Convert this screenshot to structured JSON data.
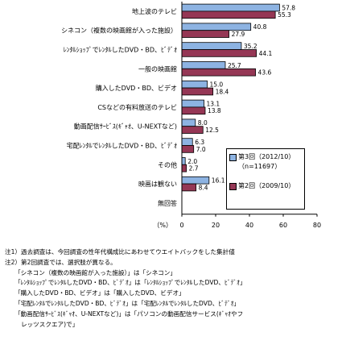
{
  "chart_data": {
    "type": "bar",
    "orientation": "horizontal",
    "categories": [
      "地上波のテレビ",
      "シネコン（複数の映画館が入った施設）",
      "ﾚﾝﾀﾙｼｮｯﾌﾟでﾚﾝﾀﾙしたDVD・BD、ﾋﾞﾃﾞｵ",
      "一般の映画館",
      "購入したDVD・BD、ビデオ",
      "CSなどの有料放送のテレビ",
      "動画配信ｻｰﾋﾞｽ(ｷﾞｬｵ、U-NEXTなど)",
      "宅配ﾚﾝﾀﾙでﾚﾝﾀﾙしたDVD・BD、ﾋﾞﾃﾞｵ",
      "その他",
      "映画は観ない",
      "無回答"
    ],
    "series": [
      {
        "name": "第3回（2012/10）",
        "values": [
          57.8,
          40.8,
          35.2,
          25.7,
          15.0,
          13.1,
          8.0,
          6.3,
          2.0,
          16.1,
          null
        ]
      },
      {
        "name": "第2回（2009/10）",
        "values": [
          55.3,
          27.9,
          44.1,
          43.6,
          18.4,
          13.8,
          12.5,
          7.0,
          2.7,
          8.4,
          null
        ]
      }
    ],
    "value_labels": [
      [
        "57.8",
        "40.8",
        "35.2",
        "25.7",
        "15.0",
        "13.1",
        "8.0",
        "6.3",
        "2.0",
        "16.1",
        ""
      ],
      [
        "55.3",
        "27.9",
        "44.1",
        "43.6",
        "18.4",
        "13.8",
        "12.5",
        "7.0",
        "2.7",
        "8.4",
        ""
      ]
    ],
    "xlabel": "（%）",
    "xlim": [
      0,
      80
    ],
    "xticks": [
      0,
      20,
      40,
      60,
      80
    ],
    "grid": false,
    "legend_position": "bottom-right",
    "colors": [
      "#8db3e2",
      "#953755"
    ]
  },
  "legend": {
    "s1_line1": "第3回（2012/10）",
    "s1_line2": "（n=11697）",
    "s2_line1": "第2回（2009/10）"
  },
  "notes": {
    "n1": "注1）過去調査は、今回調査の性年代構成比にあわせてウエイトバックをした集計値",
    "n2": "注2）第2回調査では、選択肢が異なる。",
    "n3": "「シネコン（複数の映画館が入った施設）」は「シネコン」",
    "n4": "「ﾚﾝﾀﾙｼｮｯﾌﾟでﾚﾝﾀﾙしたDVD・BD、ﾋﾞﾃﾞｵ」は「ﾚﾝﾀﾙｼｮｯﾌﾟでﾚﾝﾀﾙしたDVD、ﾋﾞﾃﾞｵ」",
    "n5": "「購入したDVD・BD、ビデオ」は「購入したDVD、ビデオ」",
    "n6": "「宅配ﾚﾝﾀﾙでﾚﾝﾀﾙしたDVD・BD、ﾋﾞﾃﾞｵ」は「宅配ﾚﾝﾀﾙでﾚﾝﾀﾙしたDVD、ﾋﾞﾃﾞｵ」",
    "n7": "「動画配信ｻｰﾋﾞｽ(ｷﾞｬｵ、U-NEXTなど)」は「パソコンの動画配信サービス(ｷﾞｬｵやフ",
    "n8": "レッツスクエア)で」"
  }
}
